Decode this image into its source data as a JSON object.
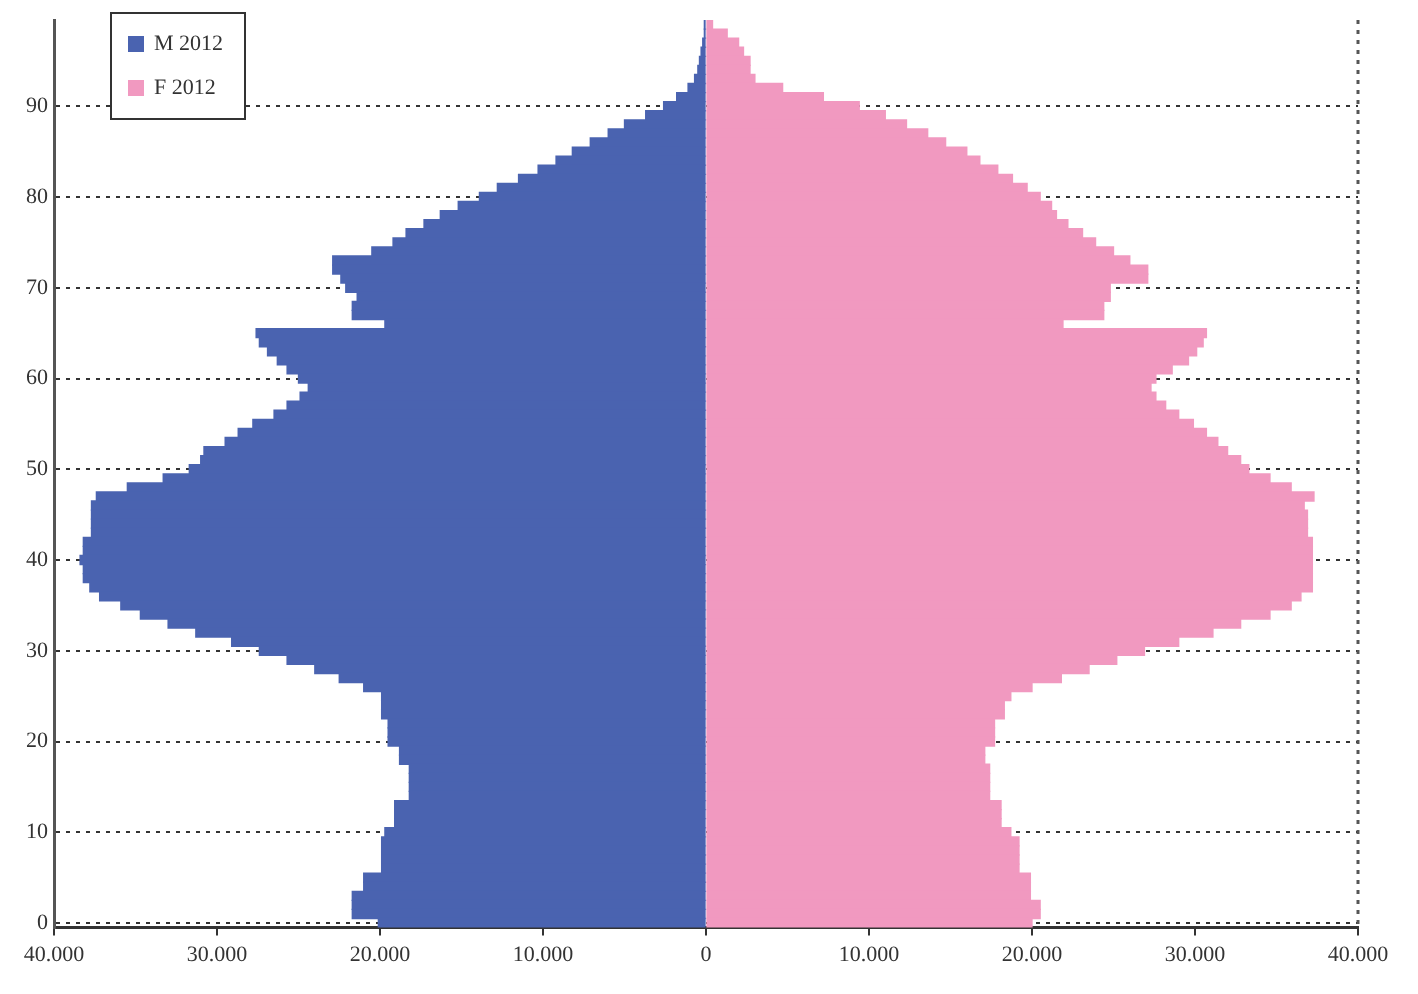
{
  "chart_data": {
    "type": "bar",
    "orientation": "horizontal",
    "categories": [
      null,
      null,
      null,
      null,
      null,
      null,
      null,
      null,
      null,
      "90",
      null,
      null,
      null,
      null,
      null,
      null,
      null,
      null,
      null,
      "80",
      null,
      null,
      null,
      null,
      null,
      null,
      null,
      null,
      null,
      "70",
      null,
      null,
      null,
      null,
      null,
      null,
      null,
      null,
      null,
      "60",
      null,
      null,
      null,
      null,
      null,
      null,
      null,
      null,
      null,
      "50",
      null,
      null,
      null,
      null,
      null,
      null,
      null,
      null,
      null,
      "40",
      null,
      null,
      null,
      null,
      null,
      null,
      null,
      null,
      null,
      "30",
      null,
      null,
      null,
      null,
      null,
      null,
      null,
      null,
      null,
      "20",
      null,
      null,
      null,
      null,
      null,
      null,
      null,
      null,
      null,
      "10",
      null,
      null,
      null,
      null,
      null,
      null,
      null,
      null,
      null,
      "0"
    ],
    "series": [
      {
        "name": "M 2012",
        "color": "#4a63b0",
        "values": [
          -100,
          -100,
          -200,
          -300,
          -400,
          -500,
          -700,
          -1100,
          -1800,
          -2600,
          -3700,
          -5000,
          -6000,
          -7100,
          -8200,
          -9200,
          -10300,
          -11500,
          -12800,
          -13900,
          -15200,
          -16300,
          -17300,
          -18400,
          -19200,
          -20500,
          -22900,
          -22900,
          -22400,
          -22100,
          -21400,
          -21700,
          -21700,
          -19700,
          -27600,
          -27400,
          -26900,
          -26300,
          -25700,
          -25000,
          -24400,
          -24900,
          -25700,
          -26500,
          -27800,
          -28700,
          -29500,
          -30800,
          -31000,
          -31700,
          -33300,
          -35500,
          -37400,
          -37700,
          -37700,
          -37700,
          -37700,
          -38200,
          -38200,
          -38400,
          -38200,
          -38200,
          -37800,
          -37200,
          -35900,
          -34700,
          -33000,
          -31300,
          -29100,
          -27400,
          -25700,
          -24000,
          -22500,
          -21000,
          -19900,
          -19900,
          -19900,
          -19500,
          -19500,
          -19500,
          -18800,
          -18800,
          -18200,
          -18200,
          -18200,
          -18200,
          -19100,
          -19100,
          -19100,
          -19700,
          -19900,
          -19900,
          -19900,
          -19900,
          -21000,
          -21000,
          -21700,
          -21700,
          -21700,
          -20100
        ]
      },
      {
        "name": "F 2012",
        "color": "#f199c0",
        "values": [
          400,
          1300,
          2000,
          2300,
          2700,
          2700,
          3000,
          4700,
          7200,
          9400,
          11000,
          12300,
          13600,
          14700,
          16000,
          16800,
          17900,
          18800,
          19700,
          20500,
          21200,
          21500,
          22200,
          23100,
          23900,
          25000,
          26000,
          27100,
          27100,
          24800,
          24800,
          24400,
          24400,
          21900,
          30700,
          30500,
          30100,
          29600,
          28600,
          27600,
          27300,
          27600,
          28200,
          29000,
          29900,
          30700,
          31400,
          32000,
          32800,
          33300,
          34600,
          35900,
          37300,
          36700,
          36900,
          36900,
          36900,
          37200,
          37200,
          37200,
          37200,
          37200,
          37200,
          36500,
          35900,
          34600,
          32800,
          31100,
          29000,
          26900,
          25200,
          23500,
          21800,
          20000,
          18700,
          18300,
          18300,
          17700,
          17700,
          17700,
          17100,
          17100,
          17400,
          17400,
          17400,
          17400,
          18100,
          18100,
          18100,
          18700,
          19200,
          19200,
          19200,
          19200,
          19900,
          19900,
          19900,
          20500,
          20500,
          20000
        ]
      }
    ],
    "xlim": [
      -40000,
      40000
    ],
    "xticks": [
      {
        "value": -40000,
        "label": "40.000"
      },
      {
        "value": -30000,
        "label": "30.000"
      },
      {
        "value": -20000,
        "label": "20.000"
      },
      {
        "value": -10000,
        "label": "10.000"
      },
      0,
      {
        "value": 10000,
        "label": "10.000"
      },
      {
        "value": 20000,
        "label": "20.000"
      },
      {
        "value": 30000,
        "label": "30.000"
      },
      {
        "value": 40000,
        "label": "40.000"
      }
    ],
    "stacked": true,
    "grid": "y",
    "legend": "top left"
  }
}
